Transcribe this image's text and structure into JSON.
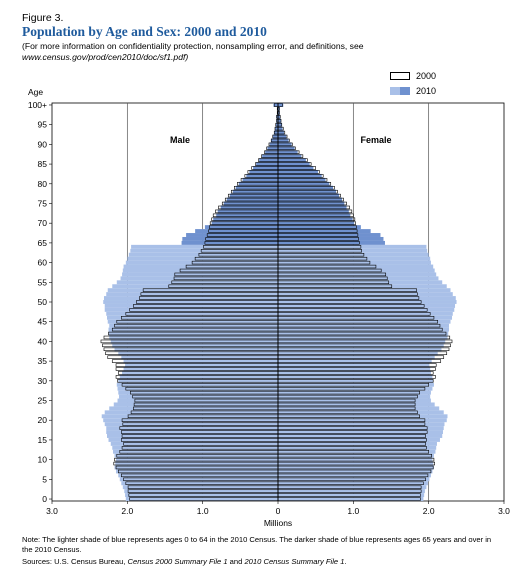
{
  "figure_label": "Figure 3.",
  "title": "Population by Age and Sex: 2000 and 2010",
  "subtitle_line1": "(For more information on confidentiality protection, nonsampling error, and definitions, see",
  "subtitle_line2": "www.census.gov/prod/cen2010/doc/sf1.pdf)",
  "note": "Note: The lighter shade of blue represents ages 0 to 64 in the 2010 Census. The darker shade of blue represents ages 65 years and over in the 2010 Census.",
  "source_prefix": "Sources: U.S. Census Bureau, ",
  "source_italic1": "Census 2000 Summary File 1",
  "source_mid": " and ",
  "source_italic2": "2010 Census Summary File 1",
  "source_suffix": ".",
  "colors": {
    "title": "#1f5b9d",
    "light_blue": "#a9c0e8",
    "dark_blue": "#6f91cf",
    "outline": "#000000"
  },
  "chart_data": {
    "type": "bar",
    "orientation": "horizontal",
    "subtype": "population pyramid",
    "xlabel": "Millions",
    "ylabel": "Age",
    "x_ticks": [
      "3.0",
      "2.0",
      "1.0",
      "0",
      "1.0",
      "2.0",
      "3.0"
    ],
    "y_ticks": [
      "0",
      "5",
      "10",
      "15",
      "20",
      "25",
      "30",
      "35",
      "40",
      "45",
      "50",
      "55",
      "60",
      "65",
      "70",
      "75",
      "80",
      "85",
      "90",
      "95",
      "100+"
    ],
    "xlim": [
      -3,
      3
    ],
    "panel_labels": {
      "left": "Male",
      "right": "Female"
    },
    "legend": [
      "2000",
      "2010"
    ],
    "legend_position": "top-right",
    "grid": "vertical lines at 1.0 and 2.0 million",
    "series": [
      {
        "name": "2000",
        "style": "outline",
        "male": [
          1.97,
          1.98,
          1.99,
          1.99,
          2.02,
          2.05,
          2.08,
          2.12,
          2.15,
          2.18,
          2.17,
          2.14,
          2.1,
          2.07,
          2.05,
          2.08,
          2.07,
          2.08,
          2.1,
          2.06,
          2.07,
          1.99,
          1.95,
          1.92,
          1.91,
          1.9,
          1.93,
          1.96,
          2.02,
          2.07,
          2.13,
          2.15,
          2.12,
          2.15,
          2.15,
          2.2,
          2.26,
          2.29,
          2.31,
          2.33,
          2.35,
          2.31,
          2.25,
          2.2,
          2.17,
          2.14,
          2.08,
          2.02,
          1.97,
          1.92,
          1.88,
          1.84,
          1.82,
          1.79,
          1.45,
          1.41,
          1.38,
          1.37,
          1.3,
          1.22,
          1.14,
          1.1,
          1.05,
          1.02,
          0.99,
          0.97,
          0.96,
          0.94,
          0.92,
          0.91,
          0.9,
          0.88,
          0.86,
          0.83,
          0.79,
          0.74,
          0.7,
          0.66,
          0.62,
          0.58,
          0.54,
          0.49,
          0.44,
          0.4,
          0.35,
          0.3,
          0.26,
          0.22,
          0.18,
          0.15,
          0.12,
          0.09,
          0.07,
          0.05,
          0.04,
          0.03,
          0.02,
          0.02,
          0.01,
          0.01,
          0.05
        ],
        "female": [
          1.89,
          1.89,
          1.9,
          1.9,
          1.93,
          1.96,
          1.99,
          2.03,
          2.06,
          2.08,
          2.07,
          2.04,
          2.0,
          1.97,
          1.96,
          1.97,
          1.96,
          1.98,
          1.98,
          1.95,
          1.95,
          1.88,
          1.85,
          1.82,
          1.82,
          1.82,
          1.85,
          1.88,
          1.95,
          2.0,
          2.06,
          2.09,
          2.06,
          2.09,
          2.1,
          2.16,
          2.2,
          2.24,
          2.27,
          2.29,
          2.31,
          2.28,
          2.23,
          2.18,
          2.15,
          2.12,
          2.07,
          2.02,
          1.98,
          1.94,
          1.9,
          1.87,
          1.85,
          1.84,
          1.51,
          1.47,
          1.45,
          1.43,
          1.37,
          1.3,
          1.22,
          1.18,
          1.14,
          1.11,
          1.1,
          1.08,
          1.07,
          1.06,
          1.05,
          1.04,
          1.03,
          1.02,
          1.0,
          0.98,
          0.95,
          0.91,
          0.87,
          0.83,
          0.79,
          0.75,
          0.7,
          0.65,
          0.6,
          0.55,
          0.5,
          0.44,
          0.39,
          0.33,
          0.28,
          0.23,
          0.19,
          0.15,
          0.12,
          0.09,
          0.07,
          0.05,
          0.04,
          0.03,
          0.02,
          0.02,
          0.06
        ]
      },
      {
        "name": "2010",
        "style": "filled (light = ages 0 to 64, dark = 65 and over)",
        "male": [
          2.02,
          2.03,
          2.04,
          2.06,
          2.08,
          2.1,
          2.12,
          2.15,
          2.17,
          2.16,
          2.15,
          2.17,
          2.19,
          2.2,
          2.22,
          2.25,
          2.27,
          2.28,
          2.28,
          2.3,
          2.32,
          2.34,
          2.3,
          2.24,
          2.18,
          2.13,
          2.11,
          2.12,
          2.13,
          2.14,
          2.12,
          2.1,
          2.07,
          2.05,
          2.03,
          2.05,
          2.08,
          2.12,
          2.17,
          2.2,
          2.22,
          2.24,
          2.25,
          2.25,
          2.24,
          2.26,
          2.27,
          2.28,
          2.3,
          2.3,
          2.32,
          2.31,
          2.28,
          2.26,
          2.2,
          2.14,
          2.09,
          2.07,
          2.06,
          2.05,
          2.02,
          2.0,
          1.98,
          1.96,
          1.95,
          1.28,
          1.27,
          1.22,
          1.1,
          0.97,
          0.88,
          0.86,
          0.82,
          0.8,
          0.76,
          0.72,
          0.68,
          0.64,
          0.6,
          0.56,
          0.52,
          0.47,
          0.42,
          0.38,
          0.33,
          0.29,
          0.25,
          0.21,
          0.17,
          0.14,
          0.11,
          0.09,
          0.07,
          0.05,
          0.04,
          0.03,
          0.02,
          0.02,
          0.01,
          0.01,
          0.06
        ],
        "female": [
          1.93,
          1.94,
          1.95,
          1.97,
          1.99,
          2.01,
          2.03,
          2.05,
          2.07,
          2.06,
          2.05,
          2.07,
          2.09,
          2.1,
          2.11,
          2.15,
          2.18,
          2.19,
          2.2,
          2.21,
          2.24,
          2.25,
          2.2,
          2.14,
          2.08,
          2.03,
          2.02,
          2.03,
          2.05,
          2.07,
          2.06,
          2.05,
          2.03,
          2.02,
          2.01,
          2.04,
          2.08,
          2.12,
          2.17,
          2.2,
          2.22,
          2.25,
          2.26,
          2.27,
          2.27,
          2.29,
          2.31,
          2.32,
          2.34,
          2.35,
          2.37,
          2.36,
          2.32,
          2.29,
          2.24,
          2.18,
          2.13,
          2.1,
          2.08,
          2.06,
          2.03,
          2.02,
          2.0,
          1.98,
          1.97,
          1.42,
          1.4,
          1.36,
          1.23,
          1.1,
          1.01,
          0.99,
          0.96,
          0.94,
          0.91,
          0.88,
          0.85,
          0.81,
          0.77,
          0.73,
          0.68,
          0.63,
          0.58,
          0.53,
          0.47,
          0.42,
          0.37,
          0.31,
          0.26,
          0.22,
          0.18,
          0.14,
          0.11,
          0.08,
          0.06,
          0.05,
          0.04,
          0.03,
          0.02,
          0.02,
          0.07
        ]
      }
    ]
  }
}
